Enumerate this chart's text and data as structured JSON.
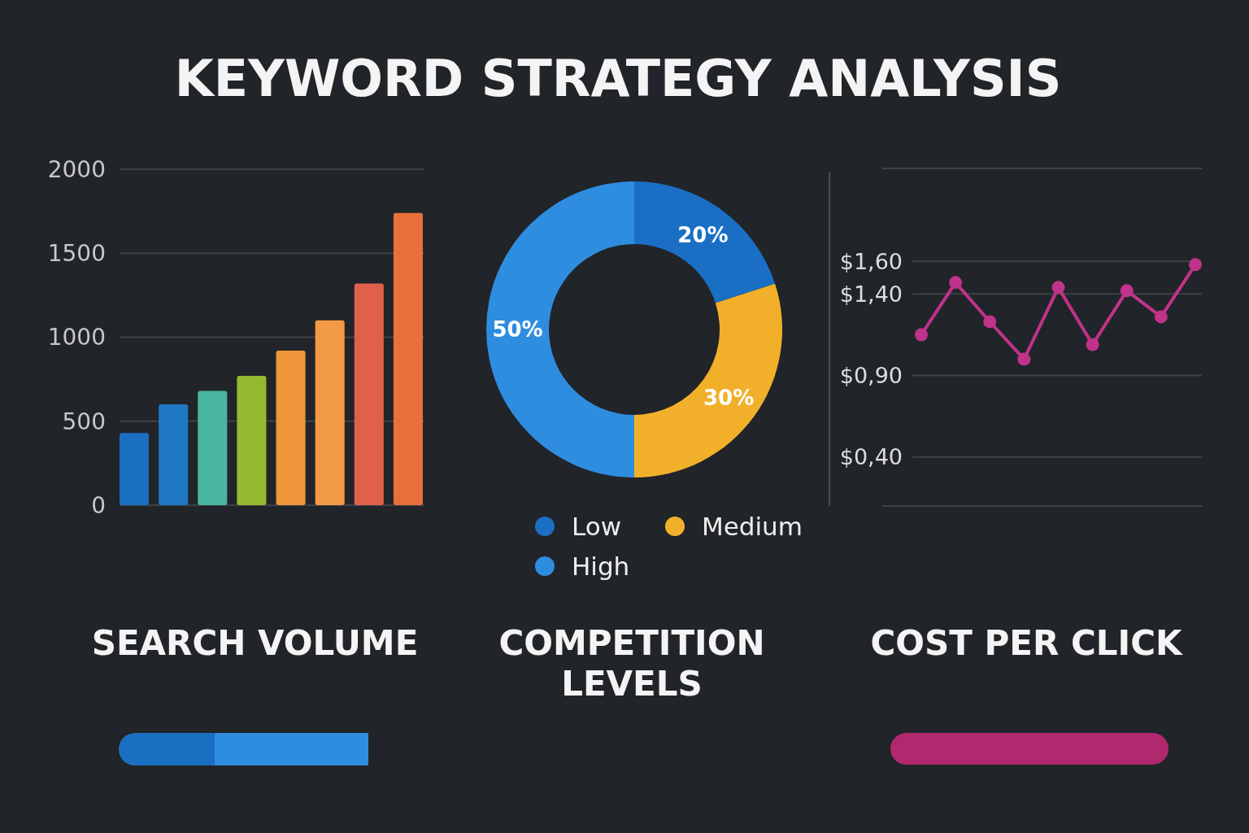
{
  "chart_data": [
    {
      "type": "other",
      "title": "KEYWORD STRATEGY ANALYSIS"
    },
    {
      "type": "bar",
      "title": "SEARCH VOLUME",
      "categories": [
        null,
        null,
        null,
        null,
        null,
        null,
        null,
        null
      ],
      "values": [
        430,
        600,
        680,
        770,
        920,
        1100,
        1320,
        1740
      ],
      "colors": [
        "#1a6fc0",
        "#1f78c4",
        "#4ab5a0",
        "#94bb30",
        "#f0963c",
        "#f29a45",
        "#e0604c",
        "#e8703a"
      ],
      "ylim": [
        0,
        2000
      ],
      "yticks": [
        0,
        500,
        1000,
        1500,
        2000
      ],
      "grid": "y"
    },
    {
      "type": "donut",
      "title": "COMPETITION LEVELS",
      "categories": [
        "Low",
        "Medium",
        "High"
      ],
      "values": [
        20,
        30,
        50
      ],
      "colors": [
        "#1a6fc4",
        "#f2b02a",
        "#2f8de0"
      ],
      "value_labels": [
        "20%",
        "30%",
        "50%"
      ],
      "legend": "bottom"
    },
    {
      "type": "line",
      "title": "COST PER CLICK",
      "categories": [
        null,
        null,
        null,
        null,
        null,
        null,
        null,
        null,
        null
      ],
      "values": [
        1.15,
        1.47,
        1.23,
        1.0,
        1.44,
        1.09,
        1.42,
        1.26,
        1.58
      ],
      "color": "#c0338a",
      "marker": "circle",
      "ylim": [
        0.1,
        2.17
      ],
      "yticks": [
        {
          "value": 0.1,
          "label": null
        },
        {
          "value": 0.4,
          "label": "$0,40"
        },
        {
          "value": 0.9,
          "label": "$0,90"
        },
        {
          "value": 1.4,
          "label": "$1,40"
        },
        {
          "value": 1.6,
          "label": "$1,60"
        },
        {
          "value": 2.17,
          "label": null
        }
      ],
      "grid": true
    }
  ]
}
